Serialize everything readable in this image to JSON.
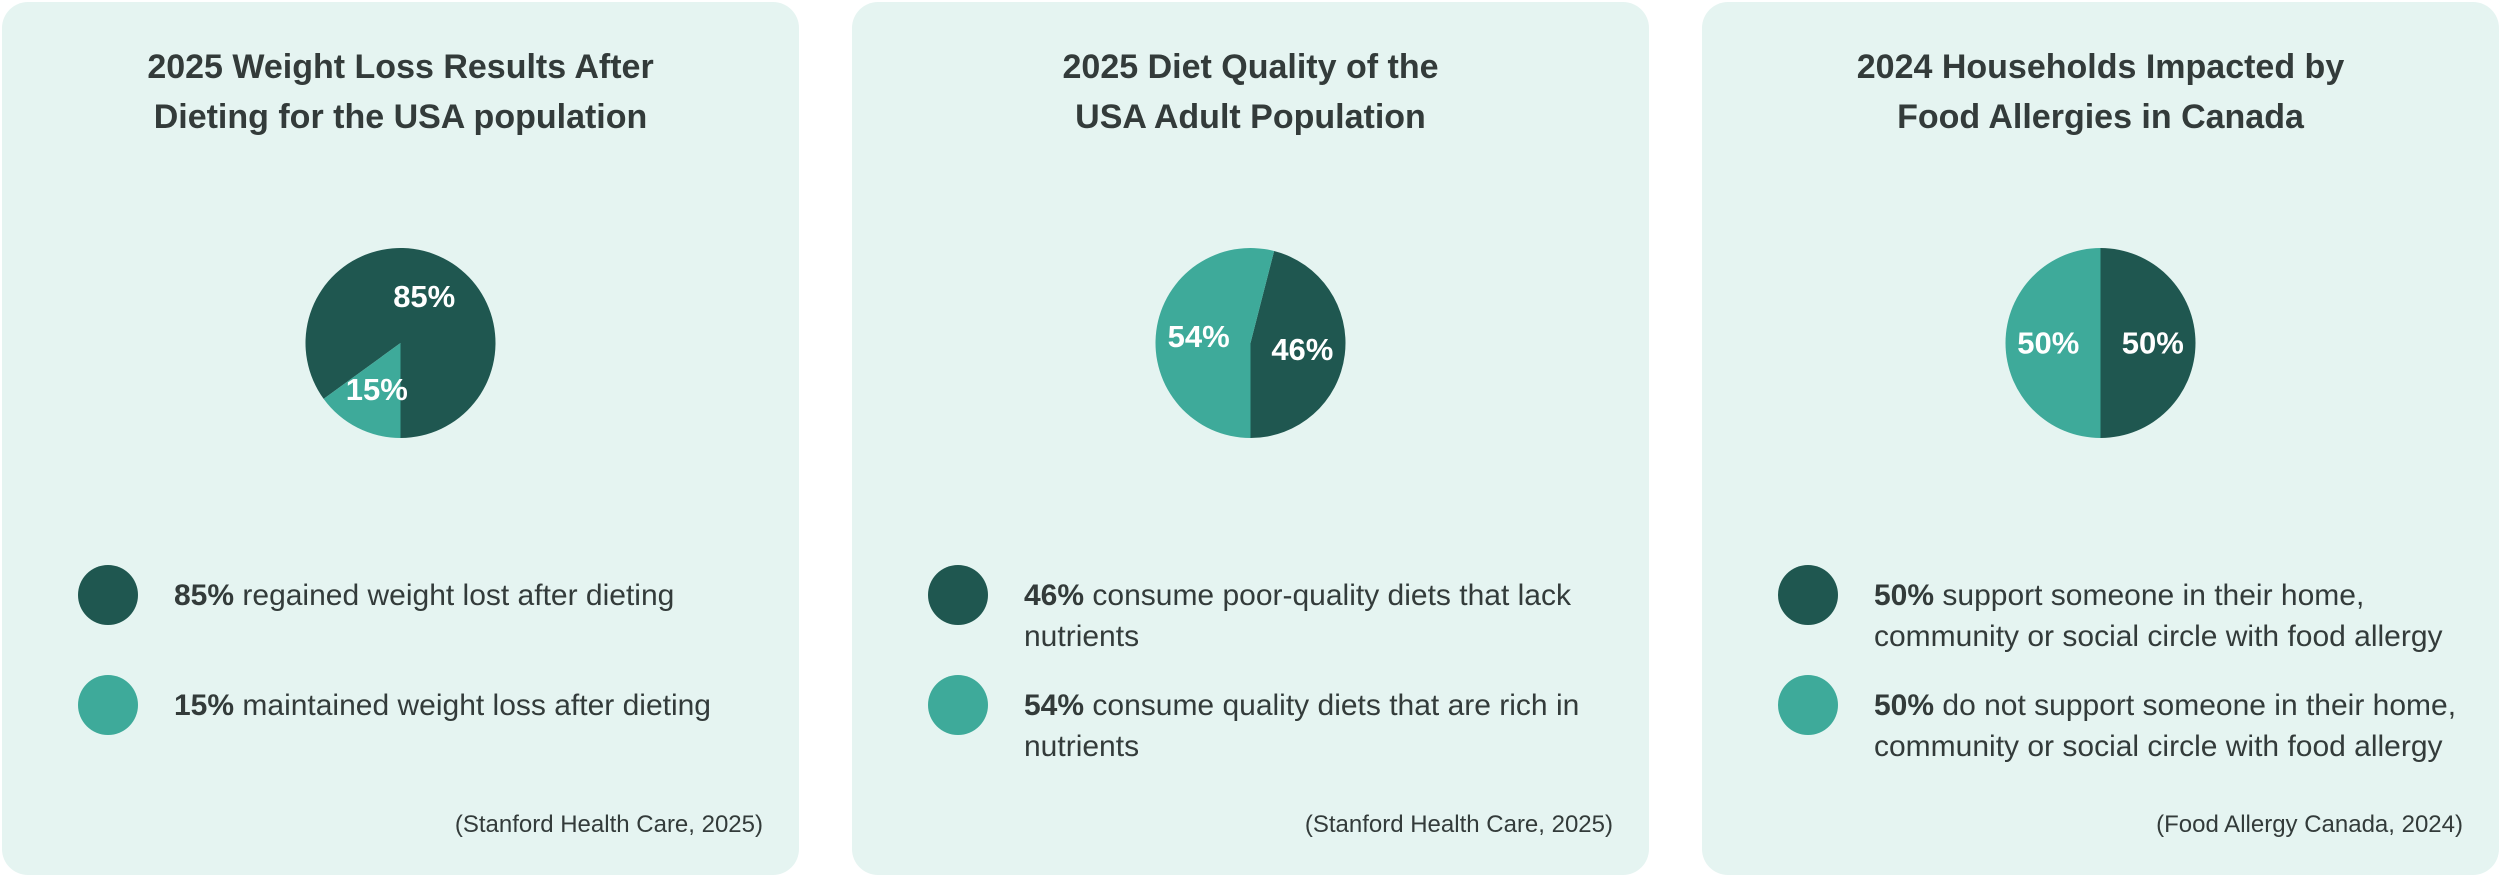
{
  "colors": {
    "dark": "#1f5750",
    "light": "#3eaa9a",
    "card_bg": "#e5f4f1",
    "text": "#333b3a"
  },
  "chart_data": [
    {
      "type": "pie",
      "title": "2025 Weight Loss Results After Dieting for the USA population",
      "title_lines": [
        "2025 Weight Loss Results After",
        "Dieting for the USA population"
      ],
      "slices": [
        {
          "label": "85%",
          "value": 85,
          "color": "#1f5750",
          "legend_pct": "85%",
          "legend_text": "regained weight lost after dieting"
        },
        {
          "label": "15%",
          "value": 15,
          "color": "#3eaa9a",
          "legend_pct": "15%",
          "legend_text": "maintained weight loss after dieting"
        }
      ],
      "source": "(Stanford Health Care, 2025)"
    },
    {
      "type": "pie",
      "title": "2025 Diet Quality of the USA Adult Population",
      "title_lines": [
        "2025 Diet Quality of the",
        "USA Adult Population"
      ],
      "slices": [
        {
          "label": "46%",
          "value": 46,
          "color": "#1f5750",
          "legend_pct": "46%",
          "legend_text": "consume poor-quality diets that lack nutrients"
        },
        {
          "label": "54%",
          "value": 54,
          "color": "#3eaa9a",
          "legend_pct": "54%",
          "legend_text": "consume quality diets that are rich in nutrients"
        }
      ],
      "source": "(Stanford Health Care, 2025)"
    },
    {
      "type": "pie",
      "title": "2024 Households Impacted by Food Allergies in Canada",
      "title_lines": [
        "2024 Households Impacted by",
        "Food Allergies in Canada"
      ],
      "slices": [
        {
          "label": "50%",
          "value": 50,
          "color": "#1f5750",
          "legend_pct": "50%",
          "legend_text": "support someone in their home, community or social circle with food allergy"
        },
        {
          "label": "50%",
          "value": 50,
          "color": "#3eaa9a",
          "legend_pct": "50%",
          "legend_text": "do not support someone in their home, community or social circle with food allergy"
        }
      ],
      "source": "(Food Allergy Canada, 2024)"
    }
  ]
}
